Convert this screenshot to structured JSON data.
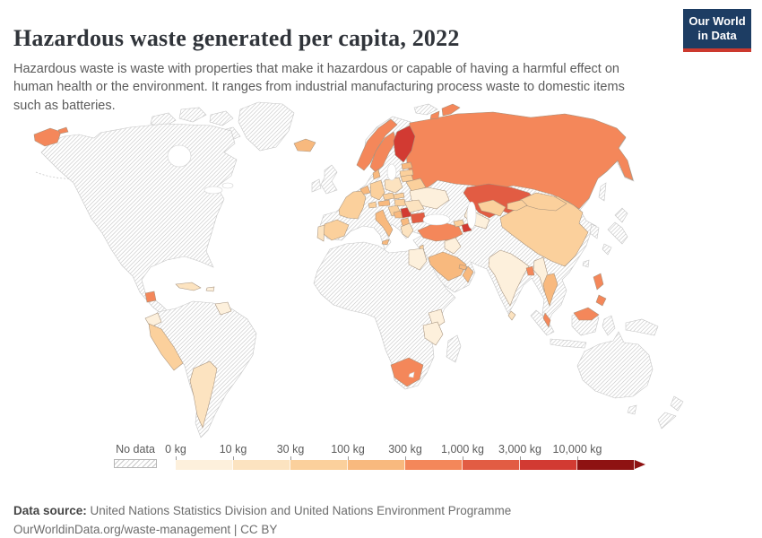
{
  "header": {
    "title": "Hazardous waste generated per capita, 2022",
    "subtitle": "Hazardous waste is waste with properties that make it hazardous or capable of having a harmful effect on human health or the environment. It ranges from industrial manufacturing process waste to domestic items such as batteries."
  },
  "logo": {
    "line1": "Our World",
    "line2": "in Data",
    "bg_color": "#1d3d63",
    "accent_color": "#cc392e"
  },
  "legend": {
    "no_data_label": "No data",
    "tick_labels": [
      "0 kg",
      "10 kg",
      "30 kg",
      "100 kg",
      "300 kg",
      "1,000 kg",
      "3,000 kg",
      "10,000 kg"
    ],
    "bin_colors": [
      "#fdf0dc",
      "#fce3c0",
      "#fbd09c",
      "#f8b97e",
      "#f4875a",
      "#e25c43",
      "#d23a32",
      "#8e1212"
    ],
    "no_data_pattern": "gray-diagonal-hatch"
  },
  "footer": {
    "source_label": "Data source:",
    "source_text": " United Nations Statistics Division and United Nations Environment Programme",
    "citation": "OurWorldinData.org/waste-management | CC BY"
  },
  "chart_data": {
    "type": "choropleth",
    "title": "Hazardous waste generated per capita, 2022",
    "unit": "kg per capita",
    "bin_edges_kg": [
      "0",
      "10",
      "30",
      "100",
      "300",
      "1,000",
      "3,000",
      "10,000"
    ],
    "bin_meaning": "bin N uses Nth legend color; ranges between successive edges, last bin is 10,000 kg and above",
    "countries": {
      "russia": 5,
      "kazakhstan": 6,
      "turkmenistan": 1,
      "uzbekistan": 3,
      "kyrgyzstan": 3,
      "mongolia": 3,
      "china": 3,
      "india": 1,
      "bangladesh": 5,
      "sri-lanka": 2,
      "myanmar": 1,
      "thailand": 4,
      "malaysia": 5,
      "philippines": 5,
      "turkey": 5,
      "georgia": 3,
      "azerbaijan": 7,
      "iraq": 1,
      "israel": 3,
      "saudi-arabia": 4,
      "uae": 4,
      "oman": 4,
      "egypt": 1,
      "kenya": 1,
      "tanzania": 1,
      "south-africa": 5,
      "iceland": 4,
      "norway": 5,
      "sweden": 5,
      "finland": 7,
      "denmark": 4,
      "estonia": 4,
      "latvia": 3,
      "lithuania": 3,
      "belarus": 3,
      "ukraine": 1,
      "poland": 2,
      "germany": 3,
      "netherlands": 4,
      "france": 3,
      "spain": 3,
      "portugal": 2,
      "italy": 4,
      "switzerland": 3,
      "czechia": 3,
      "austria": 4,
      "slovakia": 3,
      "hungary": 3,
      "croatia": 3,
      "bosnia": 4,
      "serbia": 7,
      "albania": 4,
      "greece": 2,
      "bulgaria": 6,
      "romania": 2,
      "cuba": 2,
      "dominican-republic": 1,
      "guatemala": 5,
      "ecuador": 1,
      "peru": 3,
      "argentina": 2,
      "guyana": 1
    },
    "no_data": [
      "United States",
      "Canada",
      "Mexico",
      "Greenland",
      "United Kingdom",
      "Ireland",
      "Brazil",
      "Chile",
      "Colombia",
      "Venezuela",
      "Bolivia",
      "Paraguay",
      "Uruguay",
      "most of Africa",
      "Madagascar",
      "Iran",
      "Pakistan",
      "Afghanistan",
      "Japan",
      "South Korea",
      "North Korea",
      "Vietnam",
      "Laos",
      "Cambodia",
      "Indonesia",
      "Papua New Guinea",
      "Australia",
      "New Zealand"
    ]
  }
}
